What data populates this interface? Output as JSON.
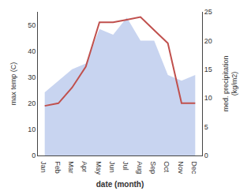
{
  "chart_data": {
    "type": "line",
    "categories": [
      "Jan",
      "Feb",
      "Mar",
      "Apr",
      "May",
      "Jun",
      "Jul",
      "Aug",
      "Sep",
      "Oct",
      "Nov",
      "Dec"
    ],
    "series": [
      {
        "type": "area",
        "axis": "y2",
        "color": "#c8d4f0",
        "values": [
          11,
          13,
          15,
          16,
          22,
          21,
          24,
          20,
          20,
          14,
          13,
          14
        ]
      },
      {
        "type": "line",
        "color": "#c0504d",
        "values": [
          19,
          20,
          26,
          34,
          51,
          51,
          52,
          53,
          48,
          43,
          20,
          20
        ]
      }
    ],
    "xlabel": "date (month)",
    "ylabel": "max temp (C)",
    "y2label": "med. precipitation\n(kg/m2)",
    "ylim": [
      0,
      55
    ],
    "yticks": [
      0,
      10,
      20,
      30,
      40,
      50
    ],
    "y2lim": [
      0,
      25
    ],
    "y2ticks": [
      0,
      5,
      10,
      15,
      20,
      25
    ],
    "grid": false
  }
}
